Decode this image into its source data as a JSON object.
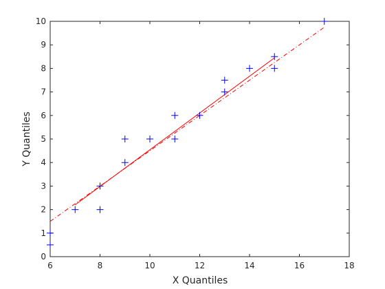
{
  "colors": {
    "background": "#ffffff",
    "axis": "#262626",
    "marker": "#0000ff",
    "reference_line": "#ff0000"
  },
  "chart_data": {
    "type": "scatter",
    "title": "",
    "xlabel": "X Quantiles",
    "ylabel": "Y Quantiles",
    "xlim": [
      6,
      18
    ],
    "ylim": [
      0,
      10
    ],
    "xticks": [
      6,
      8,
      10,
      12,
      14,
      16,
      18
    ],
    "yticks": [
      0,
      1,
      2,
      3,
      4,
      5,
      6,
      7,
      8,
      9,
      10
    ],
    "grid": false,
    "marker": "plus",
    "points": [
      {
        "x": 6,
        "y": 0.5
      },
      {
        "x": 6,
        "y": 1
      },
      {
        "x": 7,
        "y": 2
      },
      {
        "x": 8,
        "y": 2
      },
      {
        "x": 8,
        "y": 3
      },
      {
        "x": 9,
        "y": 4
      },
      {
        "x": 9,
        "y": 5
      },
      {
        "x": 10,
        "y": 5
      },
      {
        "x": 11,
        "y": 5
      },
      {
        "x": 11,
        "y": 6
      },
      {
        "x": 12,
        "y": 6
      },
      {
        "x": 13,
        "y": 7
      },
      {
        "x": 13,
        "y": 7.5
      },
      {
        "x": 14,
        "y": 8
      },
      {
        "x": 15,
        "y": 8
      },
      {
        "x": 15,
        "y": 8.5
      },
      {
        "x": 17,
        "y": 10
      }
    ],
    "reference_line": {
      "style": "dash-dot",
      "fitted_from": [
        7,
        2.2
      ],
      "fitted_to": [
        15,
        8.45
      ],
      "extended_from": [
        6,
        1.5
      ],
      "extended_to": [
        17,
        9.75
      ]
    }
  }
}
